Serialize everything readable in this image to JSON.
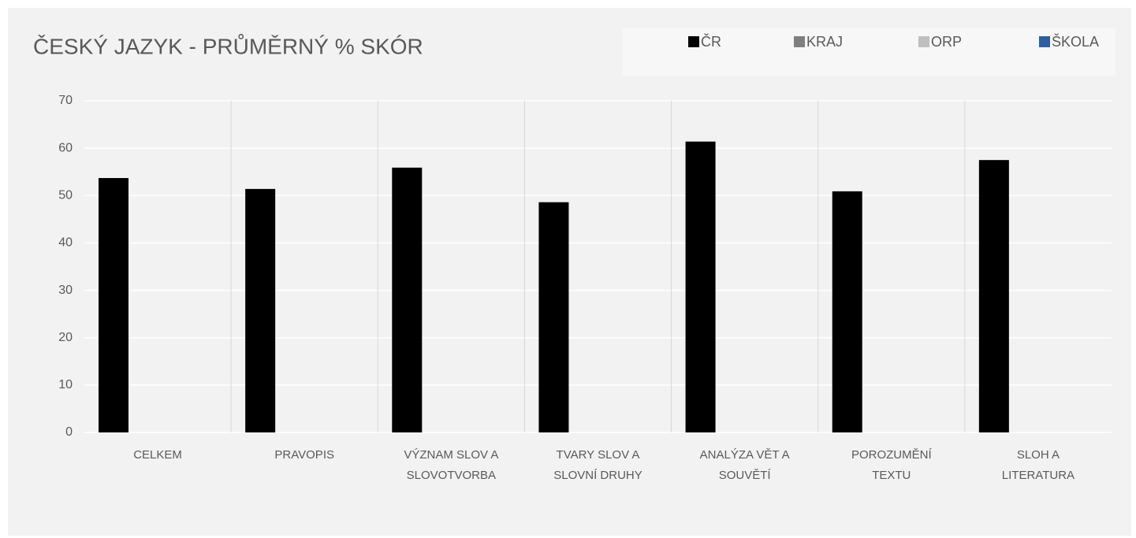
{
  "chart_data": {
    "type": "bar",
    "title": "ČESKÝ JAZYK - PRŮMĚRNÝ % SKÓR",
    "categories": [
      "CELKEM",
      "PRAVOPIS",
      "VÝZNAM SLOV A SLOVOTVORBA",
      "TVARY SLOV A SLOVNÍ DRUHY",
      "ANALÝZA VĚT A SOUVĚTÍ",
      "POROZUMĚNÍ TEXTU",
      "SLOH A LITERATURA"
    ],
    "series": [
      {
        "name": "ČR",
        "color": "#000000",
        "values": [
          53.7,
          51.4,
          55.9,
          48.6,
          61.4,
          50.9,
          57.5
        ]
      },
      {
        "name": "KRAJ",
        "color": "#7f7f7f",
        "values": [
          null,
          null,
          null,
          null,
          null,
          null,
          null
        ]
      },
      {
        "name": "ORP",
        "color": "#bfbfbf",
        "values": [
          null,
          null,
          null,
          null,
          null,
          null,
          null
        ]
      },
      {
        "name": "ŠKOLA",
        "color": "#2e5fa3",
        "values": [
          null,
          null,
          null,
          null,
          null,
          null,
          null
        ]
      }
    ],
    "ylim": [
      0,
      70
    ],
    "yticks": [
      0,
      10,
      20,
      30,
      40,
      50,
      60,
      70
    ],
    "grid": true,
    "legend": "top-right"
  }
}
